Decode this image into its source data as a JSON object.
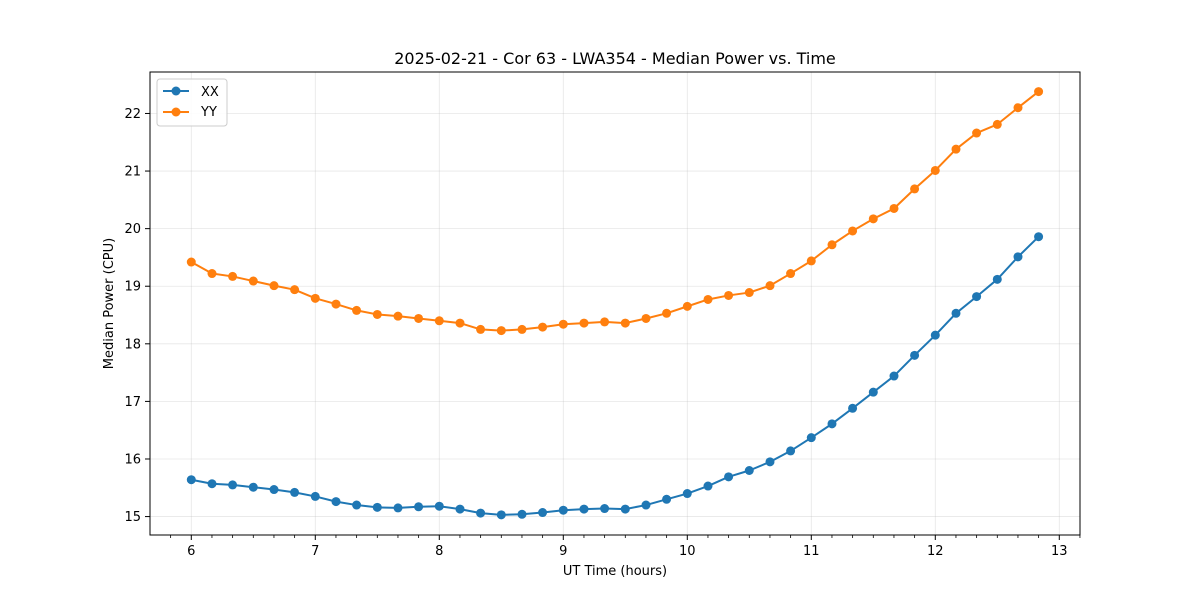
{
  "chart_data": {
    "type": "line",
    "title": "2025-02-21 - Cor 63 - LWA354 - Median Power vs. Time",
    "xlabel": "UT Time (hours)",
    "ylabel": "Median Power (CPU)",
    "xlim": [
      5.667,
      13.167
    ],
    "ylim": [
      14.68,
      22.72
    ],
    "xticks": [
      6,
      7,
      8,
      9,
      10,
      11,
      12,
      13
    ],
    "xtick_labels": [
      "6",
      "7",
      "8",
      "9",
      "10",
      "11",
      "12",
      "13"
    ],
    "yticks": [
      15,
      16,
      17,
      18,
      19,
      20,
      21,
      22
    ],
    "ytick_labels": [
      "15",
      "16",
      "17",
      "18",
      "19",
      "20",
      "21",
      "22"
    ],
    "grid": true,
    "legend_position": "top-left",
    "x": [
      6.0,
      6.167,
      6.333,
      6.5,
      6.667,
      6.833,
      7.0,
      7.167,
      7.333,
      7.5,
      7.667,
      7.833,
      8.0,
      8.167,
      8.333,
      8.5,
      8.667,
      8.833,
      9.0,
      9.167,
      9.333,
      9.5,
      9.667,
      9.833,
      10.0,
      10.167,
      10.333,
      10.5,
      10.667,
      10.833,
      11.0,
      11.167,
      11.333,
      11.5,
      11.667,
      11.833,
      12.0,
      12.167,
      12.333,
      12.5,
      12.667,
      12.833
    ],
    "series": [
      {
        "name": "XX",
        "color": "#1f77b4",
        "values": [
          15.64,
          15.57,
          15.55,
          15.51,
          15.47,
          15.42,
          15.35,
          15.26,
          15.2,
          15.16,
          15.15,
          15.17,
          15.18,
          15.13,
          15.06,
          15.03,
          15.04,
          15.07,
          15.11,
          15.13,
          15.14,
          15.13,
          15.2,
          15.3,
          15.4,
          15.53,
          15.69,
          15.8,
          15.95,
          16.14,
          16.37,
          16.61,
          16.88,
          17.16,
          17.44,
          17.8,
          18.15,
          18.53,
          18.82,
          19.12,
          19.51,
          19.86
        ]
      },
      {
        "name": "YY",
        "color": "#ff7f0e",
        "values": [
          19.42,
          19.22,
          19.17,
          19.09,
          19.01,
          18.94,
          18.79,
          18.69,
          18.58,
          18.51,
          18.48,
          18.44,
          18.4,
          18.36,
          18.25,
          18.23,
          18.25,
          18.29,
          18.34,
          18.36,
          18.38,
          18.36,
          18.44,
          18.53,
          18.65,
          18.77,
          18.84,
          18.89,
          19.01,
          19.22,
          19.44,
          19.72,
          19.96,
          20.17,
          20.35,
          20.69,
          21.01,
          21.38,
          21.66,
          21.81,
          22.1,
          22.38
        ]
      }
    ]
  }
}
